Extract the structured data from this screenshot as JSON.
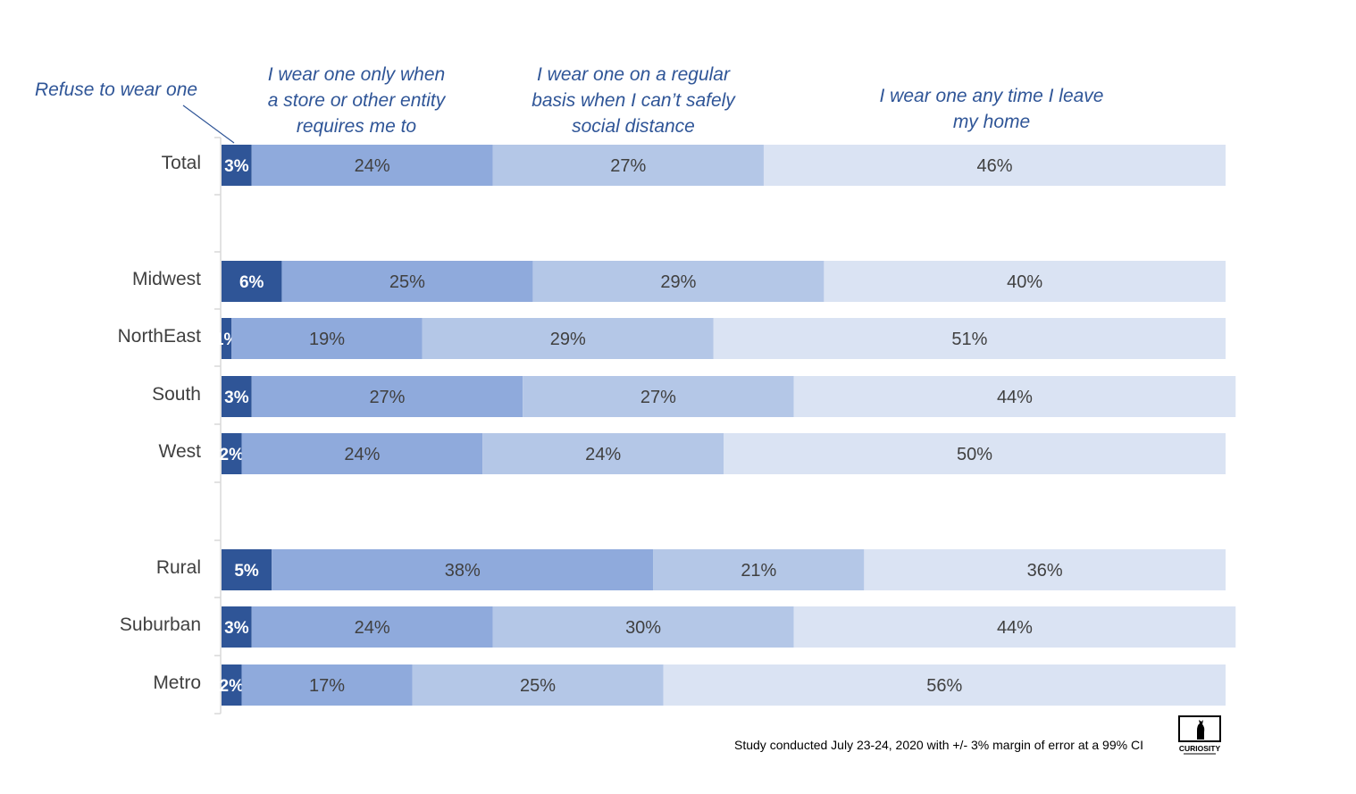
{
  "chart_data": {
    "type": "bar",
    "orientation": "horizontal",
    "stacked": true,
    "value_format": "percent",
    "categories": [
      "Total",
      "Midwest",
      "NorthEast",
      "South",
      "West",
      "Rural",
      "Suburban",
      "Metro"
    ],
    "series": [
      {
        "name": "Refuse to wear one",
        "color": "#2f5597",
        "label_color": "#ffffff",
        "values": [
          3,
          6,
          1,
          3,
          2,
          5,
          3,
          2
        ]
      },
      {
        "name": "I wear one only when a store or other entity requires me to",
        "color": "#8faadc",
        "label_color": "#404040",
        "values": [
          24,
          25,
          19,
          27,
          24,
          38,
          24,
          17
        ]
      },
      {
        "name": "I wear one on a regular basis when I can’t safely social distance",
        "color": "#b4c7e7",
        "label_color": "#404040",
        "values": [
          27,
          29,
          29,
          27,
          24,
          21,
          30,
          25
        ]
      },
      {
        "name": "I wear one any time I leave my home",
        "color": "#dae3f3",
        "label_color": "#404040",
        "values": [
          46,
          40,
          51,
          44,
          50,
          36,
          44,
          56
        ]
      }
    ],
    "series_header_lines": [
      [
        "Refuse to wear one"
      ],
      [
        "I wear one only when",
        "a store or other entity",
        "requires me to"
      ],
      [
        "I wear one on a regular",
        "basis when I can’t safely",
        "social distance"
      ],
      [
        "I wear one any time I leave",
        "my home"
      ]
    ],
    "xlim": [
      0,
      100
    ],
    "grid": false,
    "legend_position": "top",
    "footnote": "Study conducted July 23-24, 2020 with +/- 3% margin of error at a 99% CI"
  },
  "logo": {
    "name": "curiosity-logo",
    "text": "CURIOSITY"
  }
}
